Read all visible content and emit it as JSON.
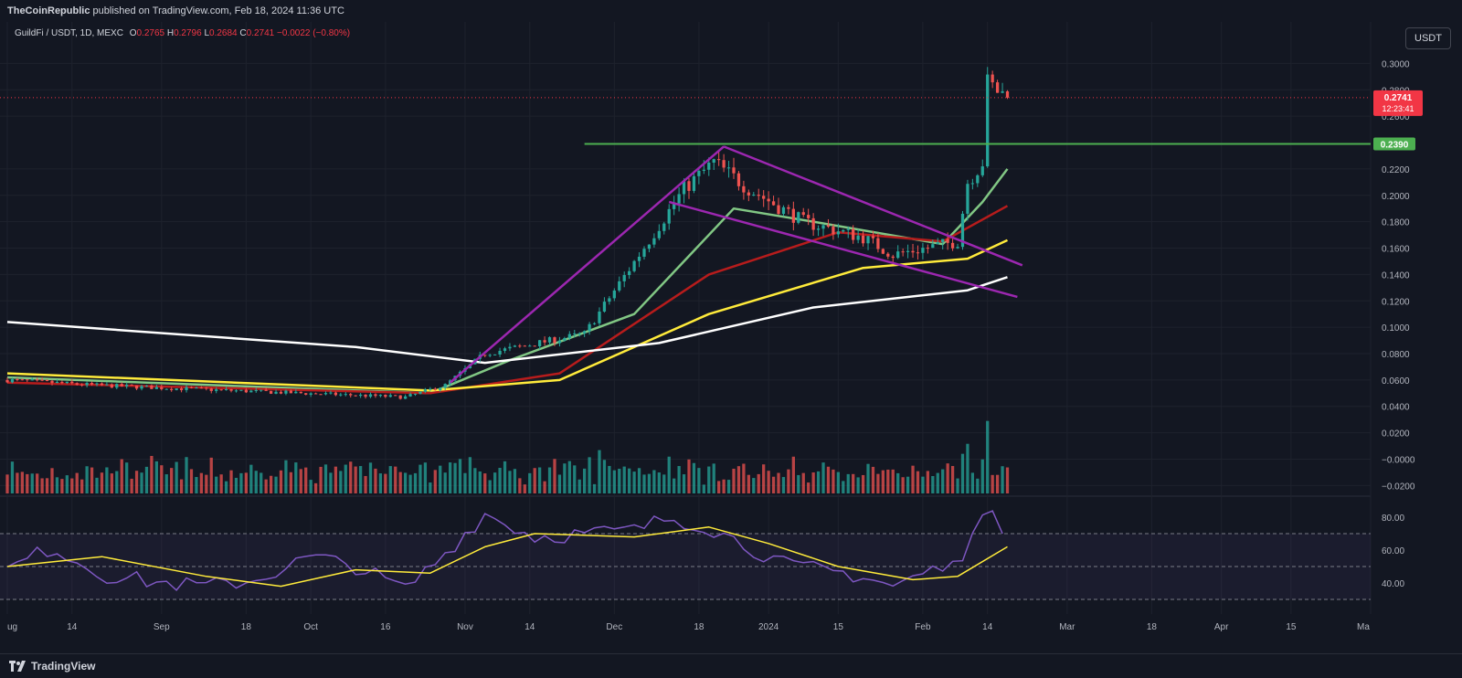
{
  "header": {
    "publisher": "TheCoinRepublic",
    "published_text": "published on TradingView.com, Feb 18, 2024 11:36 UTC"
  },
  "legend": {
    "symbol": "GuildFi / USDT, 1D, MEXC",
    "o_label": "O",
    "o": "0.2765",
    "h_label": "H",
    "h": "0.2796",
    "l_label": "L",
    "l": "0.2684",
    "c_label": "C",
    "c": "0.2741",
    "change": "−0.0022 (−0.80%)"
  },
  "currency_button": "USDT",
  "price_tags": {
    "current": "0.2741",
    "countdown": "12:23:41",
    "level": "0.2390"
  },
  "footer": {
    "brand": "TradingView"
  },
  "colors": {
    "background": "#131722",
    "grid": "#1e222d",
    "up": "#26a69a",
    "down": "#ef5350",
    "pattern": "#9c27b0",
    "level": "#4caf50",
    "ma20": "#81c784",
    "ma50": "#b71c1c",
    "ma100": "#ffeb3b",
    "ma200": "#ffffff",
    "rsi": "#7e57c2",
    "rsi_ma": "#ffeb3b"
  },
  "chart_data": [
    {
      "type": "candlestick",
      "y_ticks": [
        "0.3000",
        "0.2800",
        "0.2600",
        "0.2200",
        "0.2000",
        "0.1800",
        "0.1600",
        "0.1400",
        "0.1200",
        "0.1000",
        "0.0800",
        "0.0600",
        "0.0400",
        "0.0200",
        "−0.0000",
        "−0.0200"
      ],
      "ylim": [
        -0.026,
        0.31
      ],
      "x_ticks": [
        "ug",
        "14",
        "Sep",
        "18",
        "Oct",
        "16",
        "Nov",
        "14",
        "Dec",
        "18",
        "2024",
        "15",
        "Feb",
        "14",
        "Mar",
        "18",
        "Apr",
        "15",
        "Ma"
      ],
      "x_range": [
        "2023-08-01",
        "2024-05-01"
      ],
      "last_date": "2024-02-18",
      "horizontal_level": 0.239,
      "key_points": [
        {
          "date": "2023-08-01",
          "close": 0.06
        },
        {
          "date": "2023-08-19",
          "close": 0.056
        },
        {
          "date": "2023-09-15",
          "close": 0.052
        },
        {
          "date": "2023-10-20",
          "close": 0.047
        },
        {
          "date": "2023-10-28",
          "close": 0.056
        },
        {
          "date": "2023-11-05",
          "close": 0.08
        },
        {
          "date": "2023-11-25",
          "close": 0.095
        },
        {
          "date": "2023-12-06",
          "close": 0.155
        },
        {
          "date": "2023-12-15",
          "close": 0.205
        },
        {
          "date": "2023-12-21",
          "close": 0.225
        },
        {
          "date": "2023-12-28",
          "close": 0.205
        },
        {
          "date": "2024-01-08",
          "close": 0.18
        },
        {
          "date": "2024-01-20",
          "close": 0.168
        },
        {
          "date": "2024-01-26",
          "close": 0.155
        },
        {
          "date": "2024-02-08",
          "close": 0.165
        },
        {
          "date": "2024-02-10",
          "close": 0.21
        },
        {
          "date": "2024-02-13",
          "close": 0.225
        },
        {
          "date": "2024-02-14",
          "close": 0.285
        },
        {
          "date": "2024-02-18",
          "close": 0.2741
        }
      ],
      "moving_averages": [
        {
          "color_key": "ma20",
          "points": [
            [
              "2023-08-01",
              0.062
            ],
            [
              "2023-10-25",
              0.05
            ],
            [
              "2023-11-10",
              0.075
            ],
            [
              "2023-12-05",
              0.11
            ],
            [
              "2023-12-25",
              0.19
            ],
            [
              "2024-01-10",
              0.18
            ],
            [
              "2024-02-05",
              0.163
            ],
            [
              "2024-02-13",
              0.195
            ],
            [
              "2024-02-18",
              0.22
            ]
          ]
        },
        {
          "color_key": "ma50",
          "points": [
            [
              "2023-08-01",
              0.058
            ],
            [
              "2023-10-25",
              0.05
            ],
            [
              "2023-11-20",
              0.065
            ],
            [
              "2023-12-20",
              0.14
            ],
            [
              "2024-01-15",
              0.172
            ],
            [
              "2024-02-05",
              0.165
            ],
            [
              "2024-02-18",
              0.192
            ]
          ]
        },
        {
          "color_key": "ma100",
          "points": [
            [
              "2023-08-01",
              0.065
            ],
            [
              "2023-10-25",
              0.052
            ],
            [
              "2023-11-20",
              0.06
            ],
            [
              "2023-12-20",
              0.11
            ],
            [
              "2024-01-20",
              0.145
            ],
            [
              "2024-02-10",
              0.152
            ],
            [
              "2024-02-18",
              0.166
            ]
          ]
        },
        {
          "color_key": "ma200",
          "points": [
            [
              "2023-08-01",
              0.104
            ],
            [
              "2023-10-10",
              0.085
            ],
            [
              "2023-11-05",
              0.073
            ],
            [
              "2023-12-10",
              0.088
            ],
            [
              "2024-01-10",
              0.115
            ],
            [
              "2024-02-10",
              0.128
            ],
            [
              "2024-02-18",
              0.138
            ]
          ]
        }
      ],
      "trendlines": [
        {
          "from": [
            "2023-10-29",
            0.058
          ],
          "to": [
            "2023-12-23",
            0.237
          ]
        },
        {
          "from": [
            "2023-12-23",
            0.237
          ],
          "to": [
            "2024-02-21",
            0.147
          ]
        },
        {
          "from": [
            "2023-12-12",
            0.195
          ],
          "to": [
            "2024-02-20",
            0.123
          ]
        }
      ]
    },
    {
      "type": "rsi",
      "y_ticks": [
        "80.00",
        "60.00",
        "40.00"
      ],
      "ylim": [
        25,
        90
      ],
      "band": [
        30,
        70
      ],
      "mid": 50,
      "rsi_points": [
        [
          "2023-08-01",
          48
        ],
        [
          "2023-08-10",
          62
        ],
        [
          "2023-08-20",
          45
        ],
        [
          "2023-09-01",
          40
        ],
        [
          "2023-09-10",
          38
        ],
        [
          "2023-09-20",
          42
        ],
        [
          "2023-10-01",
          56
        ],
        [
          "2023-10-10",
          50
        ],
        [
          "2023-10-20",
          36
        ],
        [
          "2023-10-28",
          58
        ],
        [
          "2023-11-05",
          82
        ],
        [
          "2023-11-15",
          68
        ],
        [
          "2023-11-25",
          70
        ],
        [
          "2023-12-05",
          72
        ],
        [
          "2023-12-12",
          80
        ],
        [
          "2023-12-20",
          74
        ],
        [
          "2023-12-28",
          62
        ],
        [
          "2024-01-05",
          50
        ],
        [
          "2024-01-12",
          48
        ],
        [
          "2024-01-20",
          44
        ],
        [
          "2024-01-26",
          38
        ],
        [
          "2024-02-03",
          48
        ],
        [
          "2024-02-08",
          50
        ],
        [
          "2024-02-11",
          75
        ],
        [
          "2024-02-14",
          82
        ],
        [
          "2024-02-18",
          70
        ]
      ],
      "rsi_ma_points": [
        [
          "2023-08-01",
          50
        ],
        [
          "2023-08-20",
          56
        ],
        [
          "2023-09-10",
          44
        ],
        [
          "2023-09-25",
          38
        ],
        [
          "2023-10-10",
          48
        ],
        [
          "2023-10-25",
          46
        ],
        [
          "2023-11-05",
          62
        ],
        [
          "2023-11-15",
          70
        ],
        [
          "2023-12-05",
          68
        ],
        [
          "2023-12-20",
          74
        ],
        [
          "2024-01-01",
          64
        ],
        [
          "2024-01-15",
          50
        ],
        [
          "2024-01-30",
          42
        ],
        [
          "2024-02-08",
          44
        ],
        [
          "2024-02-18",
          62
        ]
      ]
    }
  ]
}
